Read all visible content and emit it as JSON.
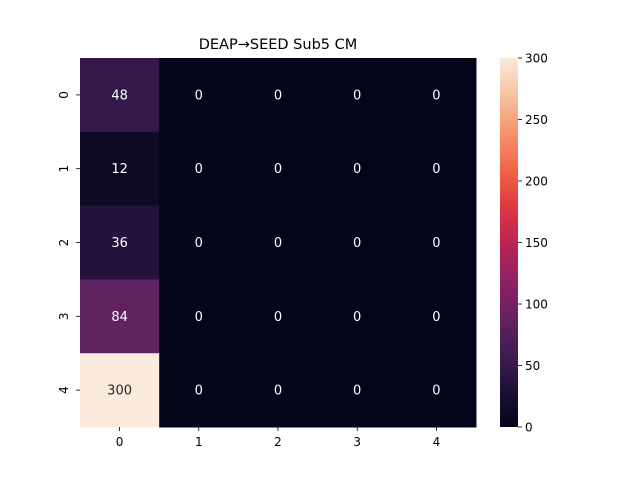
{
  "chart_data": {
    "type": "heatmap",
    "title": "DEAP→SEED Sub5 CM",
    "xlabel": "",
    "ylabel": "",
    "x_categories": [
      "0",
      "1",
      "2",
      "3",
      "4"
    ],
    "y_categories": [
      "0",
      "1",
      "2",
      "3",
      "4"
    ],
    "values": [
      [
        48,
        0,
        0,
        0,
        0
      ],
      [
        12,
        0,
        0,
        0,
        0
      ],
      [
        36,
        0,
        0,
        0,
        0
      ],
      [
        84,
        0,
        0,
        0,
        0
      ],
      [
        300,
        0,
        0,
        0,
        0
      ]
    ],
    "colorbar": {
      "range": [
        0,
        300
      ],
      "ticks": [
        0,
        50,
        100,
        150,
        200,
        250,
        300
      ],
      "colormap": "rocket"
    },
    "annotations": true,
    "grid": false
  }
}
